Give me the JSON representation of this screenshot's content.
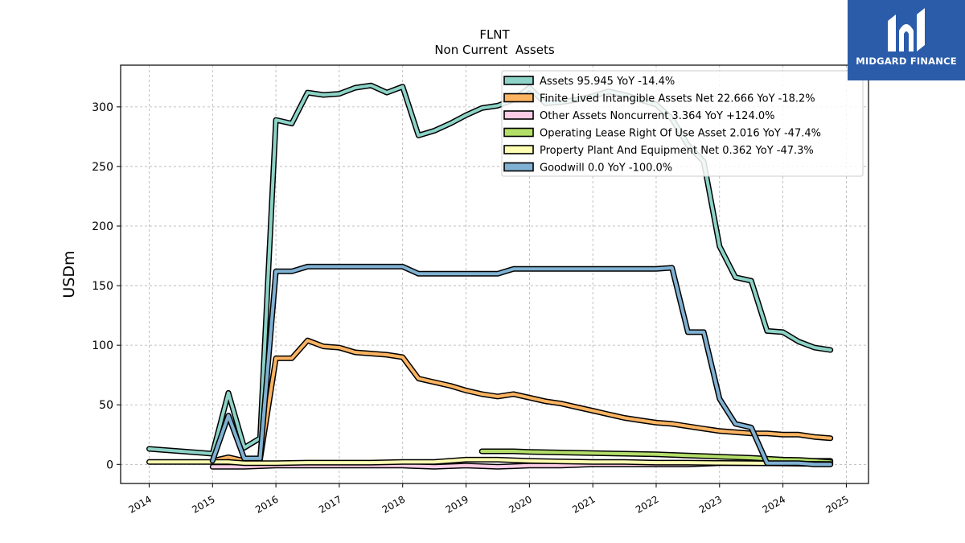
{
  "chart_data": {
    "type": "line",
    "title": "FLNT",
    "subtitle": "Non Current  Assets",
    "ylabel": "USDm",
    "xlabel": "",
    "xlim": [
      2013.55,
      2025.35
    ],
    "ylim": [
      -16,
      335
    ],
    "x_ticks": [
      "2014",
      "2015",
      "2016",
      "2017",
      "2018",
      "2019",
      "2020",
      "2021",
      "2022",
      "2023",
      "2024",
      "2025"
    ],
    "y_ticks": [
      "0",
      "50",
      "100",
      "150",
      "200",
      "250",
      "300"
    ],
    "grid": true,
    "legend_position": "top-right",
    "series": [
      {
        "name": "Assets  95.945 YoY -14.4%",
        "color": "#8dd3c7",
        "points": [
          [
            2014.0,
            13
          ],
          [
            2015.0,
            9
          ],
          [
            2015.25,
            60
          ],
          [
            2015.5,
            14
          ],
          [
            2015.75,
            22
          ],
          [
            2016.0,
            289
          ],
          [
            2016.25,
            286
          ],
          [
            2016.5,
            312
          ],
          [
            2016.75,
            310
          ],
          [
            2017.0,
            311
          ],
          [
            2017.25,
            316
          ],
          [
            2017.5,
            318
          ],
          [
            2017.75,
            312
          ],
          [
            2018.0,
            317
          ],
          [
            2018.25,
            276
          ],
          [
            2018.5,
            280
          ],
          [
            2018.75,
            286
          ],
          [
            2019.0,
            293
          ],
          [
            2019.25,
            299
          ],
          [
            2019.5,
            301
          ],
          [
            2019.75,
            306
          ],
          [
            2020.0,
            316
          ],
          [
            2020.25,
            303
          ],
          [
            2020.5,
            304
          ],
          [
            2020.75,
            306
          ],
          [
            2021.0,
            309
          ],
          [
            2021.25,
            313
          ],
          [
            2021.5,
            310
          ],
          [
            2021.75,
            306
          ],
          [
            2022.0,
            302
          ],
          [
            2022.25,
            290
          ],
          [
            2022.5,
            268
          ],
          [
            2022.75,
            254
          ],
          [
            2023.0,
            183
          ],
          [
            2023.25,
            157
          ],
          [
            2023.5,
            154
          ],
          [
            2023.75,
            112
          ],
          [
            2024.0,
            111
          ],
          [
            2024.25,
            103
          ],
          [
            2024.5,
            98
          ],
          [
            2024.75,
            96
          ]
        ]
      },
      {
        "name": "Finite Lived Intangible Assets Net  22.666 YoY -18.2%",
        "color": "#fdb462",
        "points": [
          [
            2015.0,
            3
          ],
          [
            2015.25,
            6
          ],
          [
            2015.5,
            3
          ],
          [
            2015.75,
            4
          ],
          [
            2016.0,
            89
          ],
          [
            2016.25,
            89
          ],
          [
            2016.5,
            104
          ],
          [
            2016.75,
            99
          ],
          [
            2017.0,
            98
          ],
          [
            2017.25,
            94
          ],
          [
            2017.5,
            93
          ],
          [
            2017.75,
            92
          ],
          [
            2018.0,
            90
          ],
          [
            2018.25,
            72
          ],
          [
            2018.5,
            69
          ],
          [
            2018.75,
            66
          ],
          [
            2019.0,
            62
          ],
          [
            2019.25,
            59
          ],
          [
            2019.5,
            57
          ],
          [
            2019.75,
            59
          ],
          [
            2020.0,
            56
          ],
          [
            2020.25,
            53
          ],
          [
            2020.5,
            51
          ],
          [
            2020.75,
            48
          ],
          [
            2021.0,
            45
          ],
          [
            2021.25,
            42
          ],
          [
            2021.5,
            39
          ],
          [
            2021.75,
            37
          ],
          [
            2022.0,
            35
          ],
          [
            2022.25,
            34
          ],
          [
            2022.5,
            32
          ],
          [
            2022.75,
            30
          ],
          [
            2023.0,
            28
          ],
          [
            2023.25,
            27
          ],
          [
            2023.5,
            26
          ],
          [
            2023.75,
            26
          ],
          [
            2024.0,
            25
          ],
          [
            2024.25,
            25
          ],
          [
            2024.5,
            23
          ],
          [
            2024.75,
            22
          ]
        ]
      },
      {
        "name": "Other Assets Noncurrent  3.364 YoY +124.0%",
        "color": "#fccde5",
        "points": [
          [
            2015.0,
            -2
          ],
          [
            2015.5,
            -2
          ],
          [
            2016.0,
            -1
          ],
          [
            2016.5,
            -1
          ],
          [
            2017.0,
            -1
          ],
          [
            2017.5,
            -1
          ],
          [
            2018.0,
            -1
          ],
          [
            2018.5,
            -2
          ],
          [
            2019.0,
            -1
          ],
          [
            2019.5,
            -2
          ],
          [
            2020.0,
            -1
          ],
          [
            2020.5,
            -1
          ],
          [
            2021.0,
            0
          ],
          [
            2021.5,
            0
          ],
          [
            2022.0,
            0
          ],
          [
            2022.5,
            0
          ],
          [
            2023.0,
            1
          ],
          [
            2023.5,
            1
          ],
          [
            2024.0,
            1
          ],
          [
            2024.25,
            2
          ],
          [
            2024.5,
            3
          ],
          [
            2024.75,
            3
          ]
        ]
      },
      {
        "name": "Operating Lease Right Of Use Asset  2.016 YoY -47.4%",
        "color": "#b3de69",
        "points": [
          [
            2019.25,
            11
          ],
          [
            2019.5,
            11
          ],
          [
            2019.75,
            11
          ],
          [
            2020.0,
            10.5
          ],
          [
            2020.5,
            10
          ],
          [
            2021.0,
            9.5
          ],
          [
            2021.5,
            9
          ],
          [
            2022.0,
            8.5
          ],
          [
            2022.5,
            7.5
          ],
          [
            2023.0,
            6.5
          ],
          [
            2023.5,
            5.5
          ],
          [
            2024.0,
            4
          ],
          [
            2024.25,
            3.8
          ],
          [
            2024.5,
            3
          ],
          [
            2024.75,
            2
          ]
        ]
      },
      {
        "name": "Property Plant And Equipment Net  0.362 YoY -47.3%",
        "color": "#ffffb3",
        "points": [
          [
            2014.0,
            2
          ],
          [
            2015.0,
            2
          ],
          [
            2015.25,
            2
          ],
          [
            2015.5,
            1
          ],
          [
            2016.0,
            1
          ],
          [
            2016.5,
            1.5
          ],
          [
            2017.0,
            1.5
          ],
          [
            2017.5,
            1.5
          ],
          [
            2018.0,
            2
          ],
          [
            2018.25,
            2
          ],
          [
            2018.5,
            2
          ],
          [
            2019.0,
            4
          ],
          [
            2019.5,
            4
          ],
          [
            2020.0,
            3
          ],
          [
            2020.5,
            2.5
          ],
          [
            2021.0,
            2
          ],
          [
            2021.5,
            2
          ],
          [
            2022.0,
            1.5
          ],
          [
            2022.5,
            1.5
          ],
          [
            2023.0,
            1.2
          ],
          [
            2023.5,
            1
          ],
          [
            2024.0,
            0.8
          ],
          [
            2024.5,
            0.5
          ],
          [
            2024.75,
            0.4
          ]
        ]
      },
      {
        "name": "Goodwill  0.0 YoY -100.0%",
        "color": "#80b1d3",
        "points": [
          [
            2015.0,
            3
          ],
          [
            2015.25,
            41
          ],
          [
            2015.5,
            5
          ],
          [
            2015.75,
            5
          ],
          [
            2016.0,
            162
          ],
          [
            2016.25,
            162
          ],
          [
            2016.5,
            166
          ],
          [
            2016.75,
            166
          ],
          [
            2017.0,
            166
          ],
          [
            2017.5,
            166
          ],
          [
            2018.0,
            166
          ],
          [
            2018.25,
            160
          ],
          [
            2018.5,
            160
          ],
          [
            2019.0,
            160
          ],
          [
            2019.5,
            160
          ],
          [
            2019.75,
            164
          ],
          [
            2020.0,
            164
          ],
          [
            2020.5,
            164
          ],
          [
            2021.0,
            164
          ],
          [
            2021.5,
            164
          ],
          [
            2022.0,
            164
          ],
          [
            2022.25,
            165
          ],
          [
            2022.5,
            111
          ],
          [
            2022.75,
            111
          ],
          [
            2023.0,
            55
          ],
          [
            2023.25,
            34
          ],
          [
            2023.5,
            31
          ],
          [
            2023.75,
            1
          ],
          [
            2024.0,
            1
          ],
          [
            2024.25,
            1
          ],
          [
            2024.5,
            0
          ],
          [
            2024.75,
            0
          ]
        ]
      }
    ]
  },
  "logo": {
    "text": "MIDGARD FINANCE",
    "background": "#2a5caa"
  }
}
